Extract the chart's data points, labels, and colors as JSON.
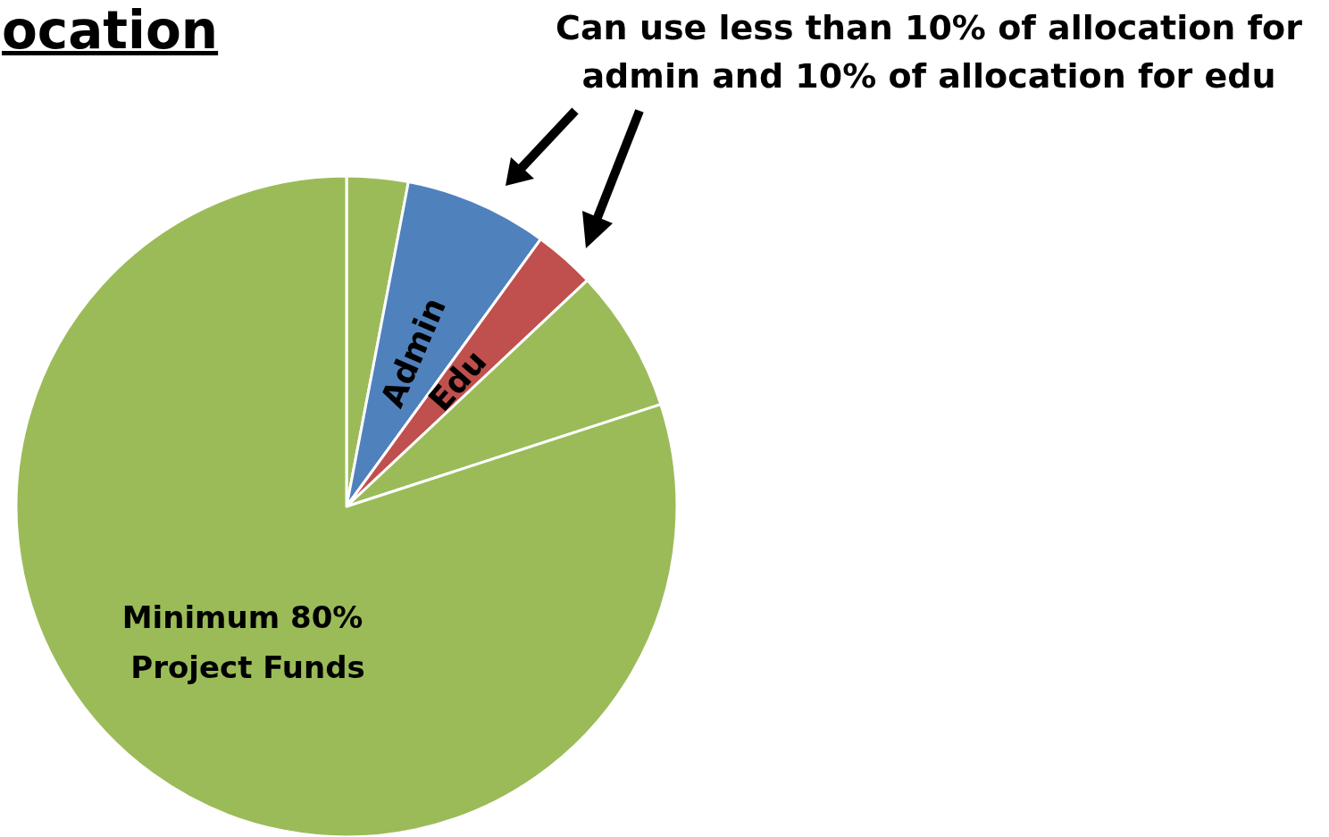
{
  "chart_data": {
    "type": "pie",
    "title": "ocation",
    "categories": [
      null,
      "Admin",
      "Edu",
      null,
      "Minimum 80% Project Funds"
    ],
    "values": [
      3,
      7,
      3,
      7,
      80
    ],
    "colors": [
      "#9bbb59",
      "#4f81bd",
      "#c0504d",
      "#9bbb59",
      "#9bbb59"
    ],
    "annotations": [
      "Can use less than 10% of allocation for admin and 10% of allocation for edu"
    ]
  }
}
